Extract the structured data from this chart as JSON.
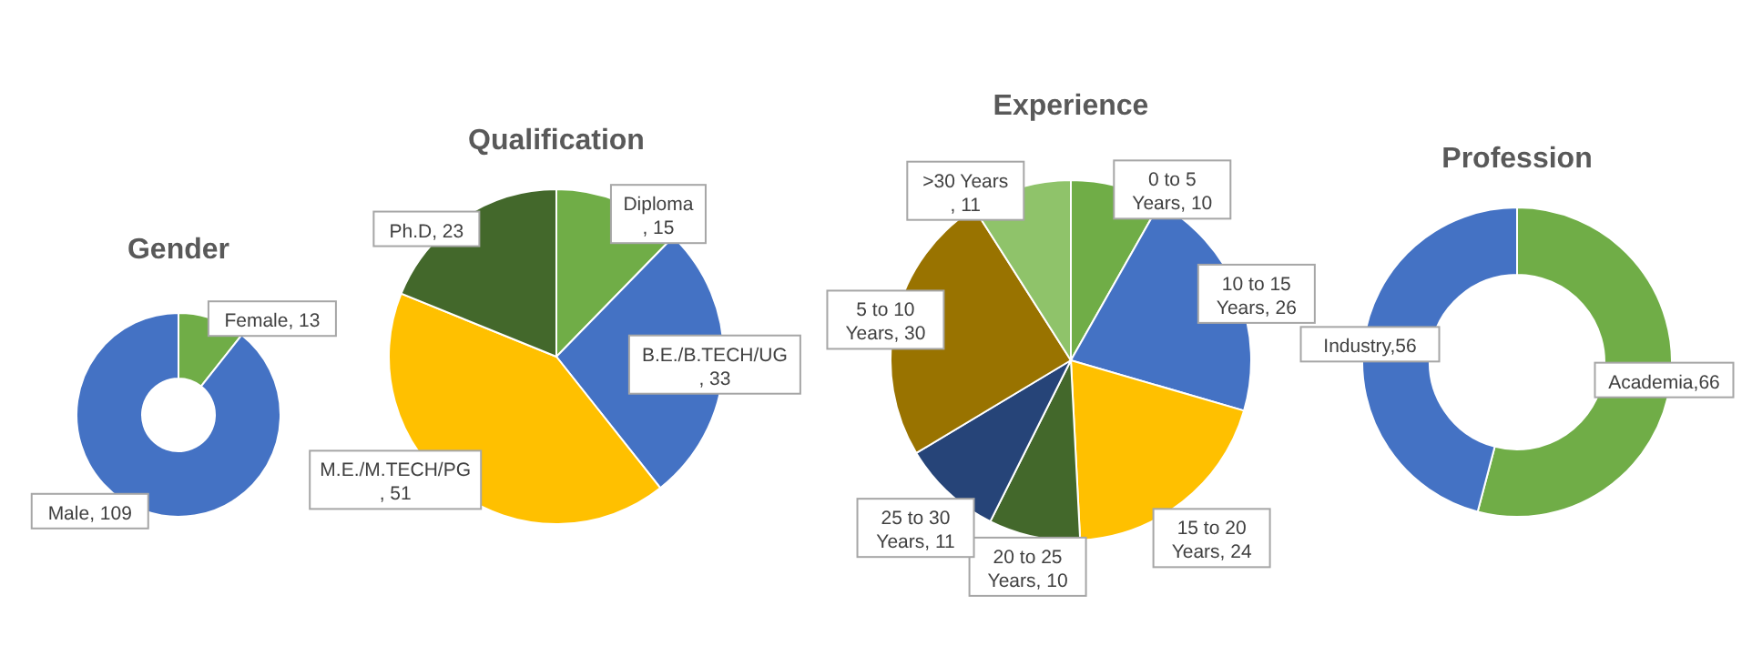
{
  "chart_data": [
    {
      "type": "donut",
      "title": "Gender",
      "categories": [
        "Female",
        "Male"
      ],
      "values": [
        13,
        109
      ],
      "colors": [
        "#70ad47",
        "#4472c4"
      ],
      "value_labels": [
        ", 13",
        ", 109"
      ]
    },
    {
      "type": "pie",
      "title": "Qualification",
      "categories": [
        "Diploma",
        "B.E./B.TECH/UG",
        "M.E./M.TECH/PG",
        "Ph.D"
      ],
      "values": [
        15,
        33,
        51,
        23
      ],
      "colors": [
        "#70ad47",
        "#4472c4",
        "#ffc000",
        "#43682b"
      ],
      "value_labels": [
        ", 15",
        " , 33",
        ", 51",
        ", 23"
      ]
    },
    {
      "type": "pie",
      "title": "Experience",
      "categories": [
        "0 to 5 Years",
        "10 to 15 Years",
        "15 to 20 Years",
        "20 to 25 Years",
        "25 to 30 Years",
        "5 to 10 Years",
        ">30 Years"
      ],
      "values": [
        10,
        26,
        24,
        10,
        11,
        30,
        11
      ],
      "colors": [
        "#70ad47",
        "#4472c4",
        "#ffc000",
        "#43682b",
        "#264478",
        "#997300",
        "#8fc36a"
      ],
      "value_labels": [
        ", 10",
        ", 26",
        ", 24",
        ", 10",
        ", 11",
        ", 30",
        ", 11"
      ]
    },
    {
      "type": "donut",
      "title": "Profession",
      "categories": [
        "Academia",
        "Industry"
      ],
      "values": [
        66,
        56
      ],
      "colors": [
        "#70ad47",
        "#4472c4"
      ],
      "value_labels": [
        ",66",
        ",56"
      ]
    }
  ]
}
